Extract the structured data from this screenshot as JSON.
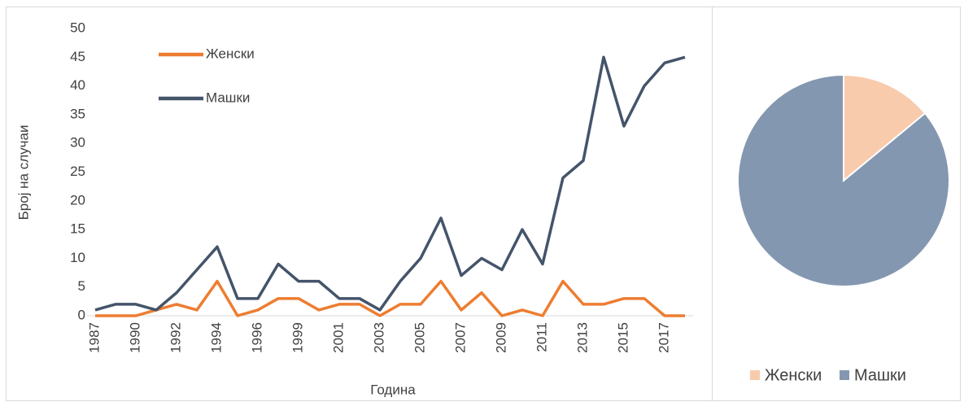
{
  "chart_data": [
    {
      "type": "line",
      "ylabel": "Број на случаи",
      "xlabel": "Година",
      "categories": [
        "1987",
        null,
        "1990",
        null,
        "1992",
        null,
        "1994",
        null,
        "1996",
        null,
        "1999",
        null,
        "2001",
        null,
        "2003",
        null,
        "2005",
        null,
        "2007",
        null,
        "2009",
        null,
        "2011",
        null,
        "2013",
        null,
        "2015",
        null,
        "2017",
        null
      ],
      "series": [
        {
          "name": "Женски",
          "color": "#ed7d31",
          "values": [
            0,
            0,
            0,
            1,
            2,
            1,
            6,
            0,
            1,
            3,
            3,
            1,
            2,
            2,
            0,
            2,
            2,
            6,
            1,
            4,
            0,
            1,
            0,
            6,
            2,
            2,
            3,
            3,
            0,
            0
          ]
        },
        {
          "name": "Машки",
          "color": "#44546a",
          "values": [
            1,
            2,
            2,
            1,
            4,
            8,
            12,
            3,
            3,
            9,
            6,
            6,
            3,
            3,
            1,
            6,
            10,
            17,
            7,
            10,
            8,
            15,
            9,
            24,
            27,
            45,
            33,
            40,
            44,
            45
          ]
        }
      ],
      "ylim": [
        0,
        50
      ],
      "yticks": [
        0,
        5,
        10,
        15,
        20,
        25,
        30,
        35,
        40,
        45,
        50
      ],
      "grid": false,
      "legend": "upper left"
    },
    {
      "type": "pie",
      "categories": [
        "Женски",
        "Машки"
      ],
      "values": [
        14,
        86
      ],
      "colors": [
        "#f8cbad",
        "#8497b0"
      ],
      "legend": "bottom"
    }
  ]
}
